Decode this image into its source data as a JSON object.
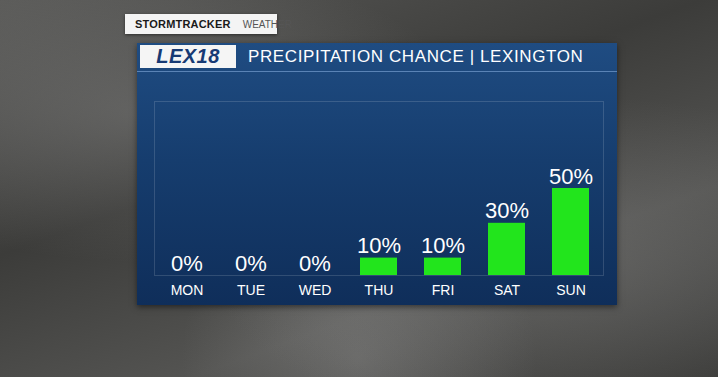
{
  "chart_data": {
    "type": "bar",
    "title": "PRECIPITATION CHANCE | LEXINGTON",
    "annotations": [
      "STORMTRACKER",
      "WEATHER",
      "LEX18"
    ],
    "categories": [
      "MON",
      "TUE",
      "WED",
      "THU",
      "FRI",
      "SAT",
      "SUN"
    ],
    "values": [
      0,
      0,
      0,
      10,
      10,
      30,
      50
    ],
    "value_labels": [
      "0%",
      "0%",
      "0%",
      "10%",
      "10%",
      "30%",
      "50%"
    ],
    "color": "#22e51c",
    "ylim": [
      0,
      100
    ],
    "data_labels": true,
    "tick_labels": "x",
    "grid": false
  }
}
